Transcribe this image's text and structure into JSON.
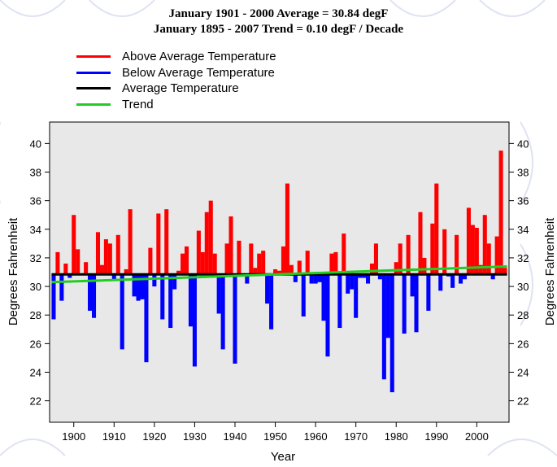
{
  "titles": {
    "line1": "January 1901 - 2000 Average = 30.84 degF",
    "line2": "January 1895 - 2007 Trend = 0.10 degF / Decade"
  },
  "legend": [
    {
      "label": "Above Average Temperature",
      "color": "#ff0000"
    },
    {
      "label": "Below Average Temperature",
      "color": "#0000ff"
    },
    {
      "label": "Average Temperature",
      "color": "#000000"
    },
    {
      "label": "Trend",
      "color": "#22cc22"
    }
  ],
  "colors": {
    "above": "#ff0000",
    "below": "#0000ff",
    "average": "#000000",
    "trend": "#22cc22",
    "panel": "#e8e8e8"
  },
  "chart_data": {
    "type": "bar",
    "title": "January 1901 - 2000 Average = 30.84 degF",
    "subtitle": "January 1895 - 2007 Trend = 0.10 degF / Decade",
    "xlabel": "Year",
    "ylabel": "Degrees Fahrenheit",
    "baseline": 30.84,
    "trend": {
      "start_year": 1895,
      "start_value": 30.3,
      "end_year": 2007,
      "end_value": 31.4,
      "rate_per_decade": 0.1
    },
    "xlim": [
      1894,
      2008
    ],
    "ylim": [
      20.5,
      41.5
    ],
    "xticks": [
      1900,
      1910,
      1920,
      1930,
      1940,
      1950,
      1960,
      1970,
      1980,
      1990,
      2000
    ],
    "yticks": [
      22,
      24,
      26,
      28,
      30,
      32,
      34,
      36,
      38,
      40
    ],
    "years": [
      1895,
      1896,
      1897,
      1898,
      1899,
      1900,
      1901,
      1902,
      1903,
      1904,
      1905,
      1906,
      1907,
      1908,
      1909,
      1910,
      1911,
      1912,
      1913,
      1914,
      1915,
      1916,
      1917,
      1918,
      1919,
      1920,
      1921,
      1922,
      1923,
      1924,
      1925,
      1926,
      1927,
      1928,
      1929,
      1930,
      1931,
      1932,
      1933,
      1934,
      1935,
      1936,
      1937,
      1938,
      1939,
      1940,
      1941,
      1942,
      1943,
      1944,
      1945,
      1946,
      1947,
      1948,
      1949,
      1950,
      1951,
      1952,
      1953,
      1954,
      1955,
      1956,
      1957,
      1958,
      1959,
      1960,
      1961,
      1962,
      1963,
      1964,
      1965,
      1966,
      1967,
      1968,
      1969,
      1970,
      1971,
      1972,
      1973,
      1974,
      1975,
      1976,
      1977,
      1978,
      1979,
      1980,
      1981,
      1982,
      1983,
      1984,
      1985,
      1986,
      1987,
      1988,
      1989,
      1990,
      1991,
      1992,
      1993,
      1994,
      1995,
      1996,
      1997,
      1998,
      1999,
      2000,
      2001,
      2002,
      2003,
      2004,
      2005,
      2006,
      2007
    ],
    "values": [
      27.7,
      32.4,
      29.0,
      31.6,
      30.6,
      35.0,
      32.6,
      30.8,
      31.7,
      28.3,
      27.8,
      33.8,
      31.5,
      33.3,
      33.0,
      30.5,
      33.6,
      25.6,
      31.2,
      35.4,
      29.3,
      29.0,
      29.1,
      24.7,
      32.7,
      30.0,
      35.1,
      27.7,
      35.4,
      27.1,
      29.8,
      31.1,
      32.3,
      32.8,
      27.2,
      24.4,
      33.9,
      32.4,
      35.2,
      36.0,
      32.3,
      28.1,
      25.6,
      33.0,
      34.9,
      24.6,
      33.2,
      30.8,
      30.2,
      33.0,
      31.3,
      32.3,
      32.5,
      28.8,
      27.0,
      31.2,
      31.1,
      32.8,
      37.2,
      31.5,
      30.3,
      31.8,
      27.9,
      32.5,
      30.2,
      30.2,
      30.3,
      27.6,
      25.1,
      32.3,
      32.4,
      27.1,
      33.7,
      29.5,
      29.8,
      27.8,
      30.6,
      30.6,
      30.2,
      31.6,
      33.0,
      30.5,
      23.5,
      26.4,
      22.6,
      31.7,
      33.0,
      26.7,
      33.6,
      29.3,
      26.8,
      35.2,
      32.0,
      28.3,
      34.4,
      37.2,
      29.7,
      34.0,
      30.7,
      29.9,
      33.6,
      30.2,
      30.5,
      35.5,
      34.3,
      34.1,
      31.5,
      35.0,
      33.0,
      30.5,
      33.5,
      39.5,
      31.3
    ]
  },
  "axes": {
    "xlabel": "Year",
    "ylabel_left": "Degrees Fahrenheit",
    "ylabel_right": "Degrees Fahrenheit"
  }
}
